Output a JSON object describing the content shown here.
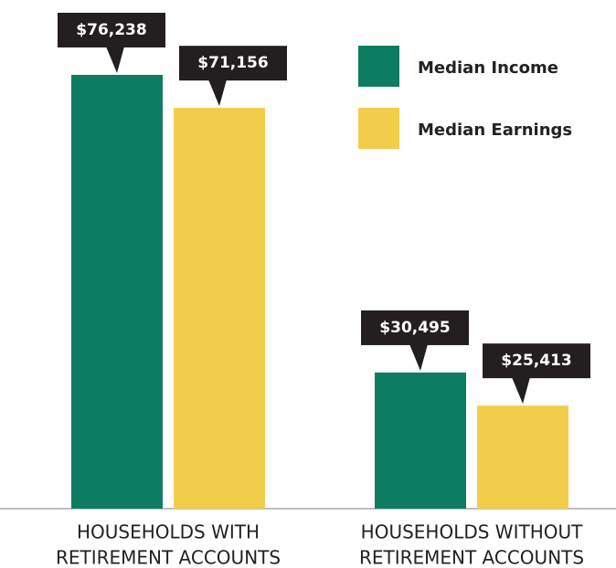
{
  "chart_data": {
    "type": "bar",
    "categories": [
      [
        "HOUSEHOLDS WITH",
        "RETIREMENT ACCOUNTS"
      ],
      [
        "HOUSEHOLDS WITHOUT",
        "RETIREMENT ACCOUNTS"
      ]
    ],
    "series": [
      {
        "name": "Median Income",
        "color": "#0e7c61",
        "values": [
          76238,
          30495
        ],
        "value_labels": [
          "$76,238",
          "$30,495"
        ]
      },
      {
        "name": "Median Earnings",
        "color": "#f2cd4a",
        "values": [
          71156,
          25413
        ],
        "value_labels": [
          "$71,156",
          "$25,413"
        ]
      }
    ],
    "ylim": [
      9580,
      87740
    ]
  }
}
